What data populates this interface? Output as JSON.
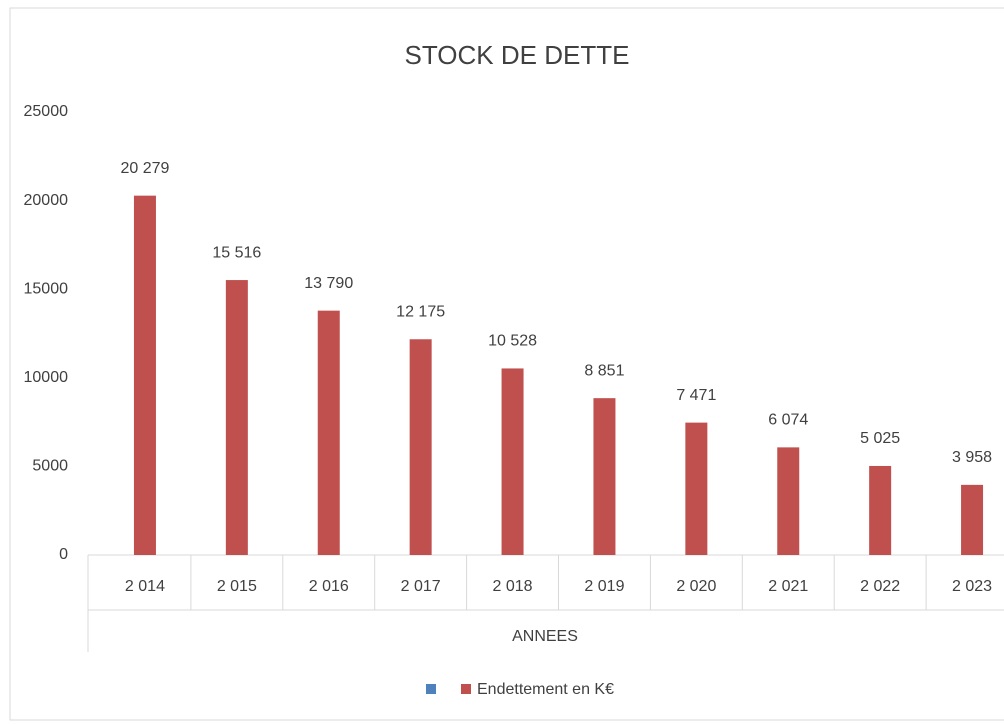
{
  "chart_data": {
    "type": "bar",
    "title": "STOCK DE DETTE",
    "xlabel": "ANNEES",
    "categories": [
      "2 014",
      "2 015",
      "2 016",
      "2 017",
      "2 018",
      "2 019",
      "2 020",
      "2 021",
      "2 022",
      "2 023"
    ],
    "series": [
      {
        "name": "Endettement en K€",
        "color": "#c0504d",
        "values": [
          20279,
          15516,
          13790,
          12175,
          10528,
          8851,
          7471,
          6074,
          5025,
          3958
        ],
        "value_labels": [
          "20 279",
          "15 516",
          "13 790",
          "12 175",
          "10 528",
          "8 851",
          "7 471",
          "6 074",
          "5 025",
          "3 958"
        ]
      }
    ],
    "ylim": [
      0,
      25000
    ],
    "yticks": [
      0,
      5000,
      10000,
      15000,
      20000,
      25000
    ],
    "grid": false,
    "legend": "bottom"
  }
}
